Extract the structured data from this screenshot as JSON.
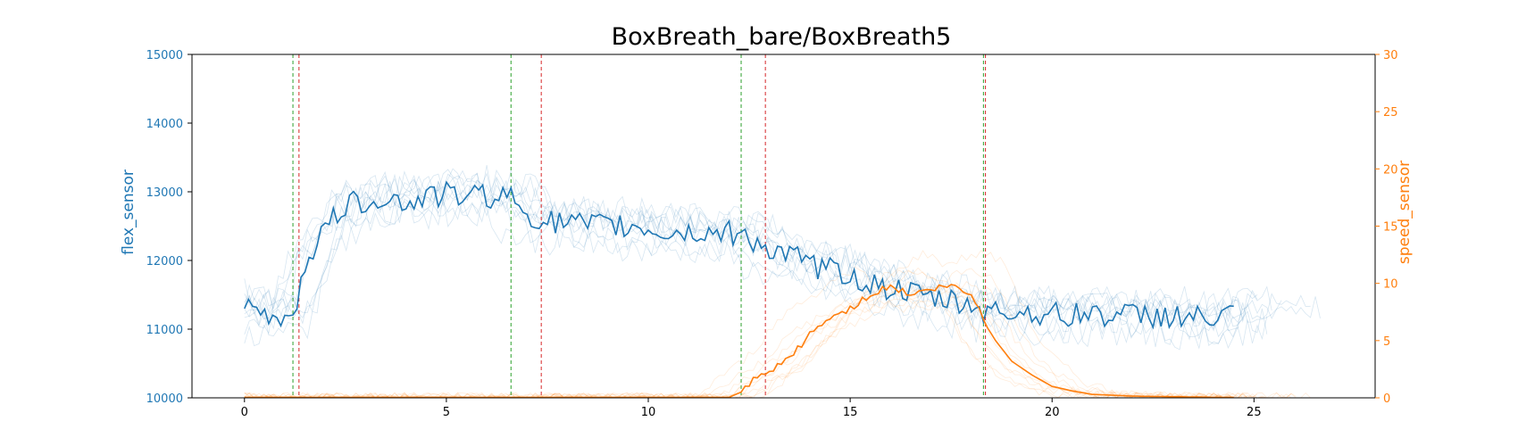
{
  "chart_data": {
    "type": "line",
    "title": "BoxBreath_bare/BoxBreath5",
    "xlabel": "",
    "ylabel_left": "flex_sensor",
    "ylabel_right": "speed_sensor",
    "xlim": [
      -1.3,
      28.0
    ],
    "ylim_left": [
      10000,
      15000
    ],
    "ylim_right": [
      0,
      30
    ],
    "x_ticks": [
      0,
      5,
      10,
      15,
      20,
      25
    ],
    "y_ticks_left": [
      10000,
      11000,
      12000,
      13000,
      14000,
      15000
    ],
    "y_ticks_right": [
      0,
      5,
      10,
      15,
      20,
      25,
      30
    ],
    "colors": {
      "flex": "#1f77b4",
      "speed": "#ff7f0e",
      "left_axis_text": "#1f77b4",
      "right_axis_text": "#ff7f0e",
      "green_marker": "#2ca02c",
      "red_marker": "#d62728"
    },
    "grid": false,
    "vertical_markers": {
      "green": [
        1.2,
        6.6,
        12.3,
        18.3
      ],
      "red": [
        1.35,
        7.35,
        12.9,
        18.35
      ]
    },
    "background_trials": {
      "flex_count": 10,
      "speed_count": 10
    },
    "series": [
      {
        "name": "flex_sensor",
        "axis": "left",
        "x": [
          0,
          0.5,
          1.0,
          1.3,
          1.6,
          2.0,
          2.5,
          3.0,
          3.5,
          4.0,
          4.5,
          5.0,
          5.5,
          6.0,
          6.5,
          7.0,
          7.5,
          8.0,
          8.5,
          9.0,
          9.5,
          10.0,
          10.5,
          11.0,
          11.5,
          12.0,
          12.5,
          13.0,
          13.5,
          14.0,
          14.5,
          15.0,
          15.5,
          16.0,
          16.5,
          17.0,
          17.5,
          18.0,
          18.5,
          19.0,
          19.5,
          20.0,
          20.5,
          21.0,
          21.5,
          22.0,
          22.5,
          23.0,
          23.5,
          24.0,
          24.5
        ],
        "values": [
          11300,
          11200,
          11150,
          11450,
          12100,
          12450,
          12800,
          12850,
          12950,
          12800,
          12950,
          12950,
          12950,
          12950,
          12950,
          12700,
          12550,
          12550,
          12500,
          12500,
          12500,
          12450,
          12400,
          12400,
          12400,
          12400,
          12350,
          12150,
          12050,
          11950,
          11850,
          11800,
          11650,
          11600,
          11500,
          11450,
          11400,
          11350,
          11250,
          11250,
          11250,
          11200,
          11200,
          11250,
          11200,
          11200,
          11200,
          11200,
          11150,
          11150,
          11200
        ]
      },
      {
        "name": "speed_sensor",
        "axis": "right",
        "x": [
          0,
          2,
          4,
          6,
          8,
          10,
          12,
          12.3,
          12.6,
          13.0,
          13.5,
          14.0,
          14.5,
          15.0,
          15.5,
          16.0,
          16.5,
          17.0,
          17.5,
          18.0,
          18.3,
          18.6,
          19.0,
          19.5,
          20.0,
          20.5,
          21.0,
          22.0,
          23.0,
          24.0,
          24.5
        ],
        "values": [
          0.05,
          0.05,
          0.05,
          0.05,
          0.05,
          0.05,
          0.05,
          0.5,
          1.5,
          2.2,
          3.5,
          5.5,
          7.0,
          7.8,
          9.0,
          9.8,
          9.0,
          9.5,
          9.8,
          9.0,
          7.0,
          5.0,
          3.2,
          2.0,
          1.0,
          0.6,
          0.3,
          0.15,
          0.1,
          0.05,
          0.05
        ]
      }
    ]
  }
}
